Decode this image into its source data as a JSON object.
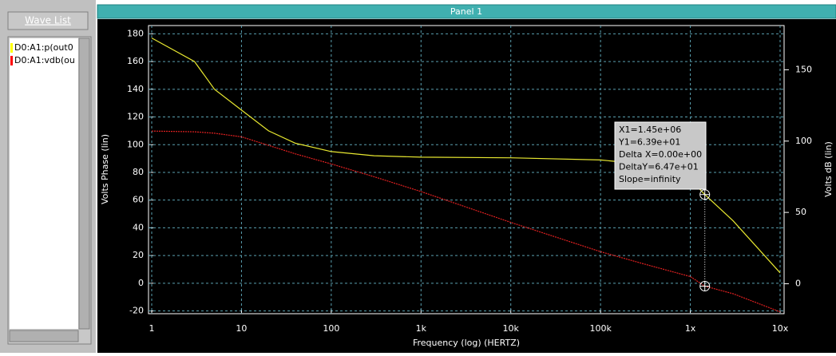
{
  "wave_list": {
    "button": "Wave List",
    "items": [
      {
        "name": "D0:A1:p(out0",
        "color": "#ffff00"
      },
      {
        "name": "D0:A1:vdb(ou",
        "color": "#ff0000"
      }
    ]
  },
  "panel": {
    "title": "Panel 1"
  },
  "chart_data": {
    "type": "line",
    "xscale": "log",
    "grid": true,
    "xlabel": "Frequency (log) (HERTZ)",
    "ylabel": "Volts Phase (lin)",
    "y2label": "Volts dB (lin)",
    "x": [
      1,
      3,
      5,
      10,
      20,
      40,
      100,
      300,
      1000,
      10000,
      100000,
      300000,
      1000000,
      1450000,
      3000000,
      10000000
    ],
    "series": [
      {
        "name": "D0:A1:p(out0",
        "color": "#e8e830",
        "values": [
          177,
          160,
          140,
          125,
          110,
          101,
          95,
          92,
          91,
          90.5,
          89,
          86,
          75,
          64,
          45,
          7.5
        ]
      },
      {
        "name": "D0:A1:vdb(ou",
        "color": "#e02020",
        "axis": "y2",
        "values": [
          107,
          106.5,
          105.5,
          103,
          97,
          91,
          84,
          75,
          64.6,
          43,
          22.5,
          14,
          5,
          -1.7,
          -7,
          -19.7
        ]
      }
    ],
    "xlim": [
      1,
      10000000
    ],
    "xticks": [
      1,
      10,
      100,
      {
        "value": 1000,
        "label": "1k"
      },
      {
        "value": 10000,
        "label": "10k"
      },
      {
        "value": 100000,
        "label": "100k"
      },
      {
        "value": 1000000,
        "label": "1x"
      },
      {
        "value": 10000000,
        "label": "10x"
      }
    ],
    "ylim": [
      -22,
      186
    ],
    "yticks": [
      180,
      160,
      140,
      120,
      100,
      80,
      60,
      40,
      20,
      0,
      -20
    ],
    "y2lim": [
      -21,
      181
    ],
    "y2ticks": [
      150,
      100,
      50,
      0
    ],
    "cursor": {
      "x": 1450000,
      "label": "X1=1.45e+06",
      "readout": [
        "Y1=6.39e+01",
        "Delta X=0.00e+00",
        "DeltaY=6.47e+01",
        "Slope=infinity"
      ]
    }
  }
}
